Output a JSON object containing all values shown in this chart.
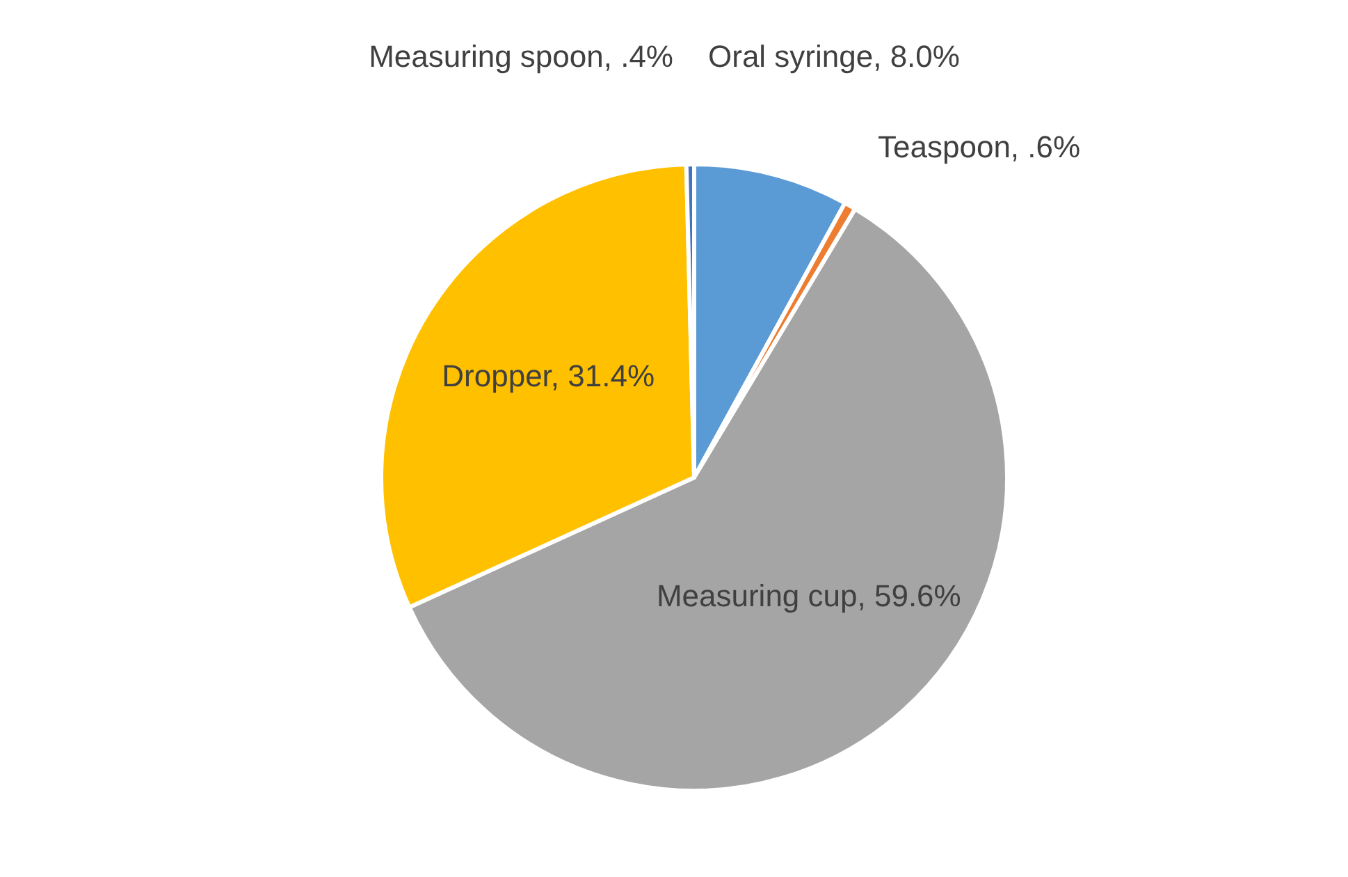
{
  "chart_data": {
    "type": "pie",
    "categories": [
      "Oral syringe",
      "Teaspoon",
      "Measuring cup",
      "Dropper",
      "Measuring spoon"
    ],
    "values": [
      8.0,
      0.6,
      59.6,
      31.4,
      0.4
    ],
    "value_labels": [
      "8.0%",
      ".6%",
      "59.6%",
      "31.4%",
      ".4%"
    ],
    "colors": [
      "#5b9bd5",
      "#ed7d31",
      "#a5a5a5",
      "#ffc000",
      "#4472c4"
    ]
  }
}
